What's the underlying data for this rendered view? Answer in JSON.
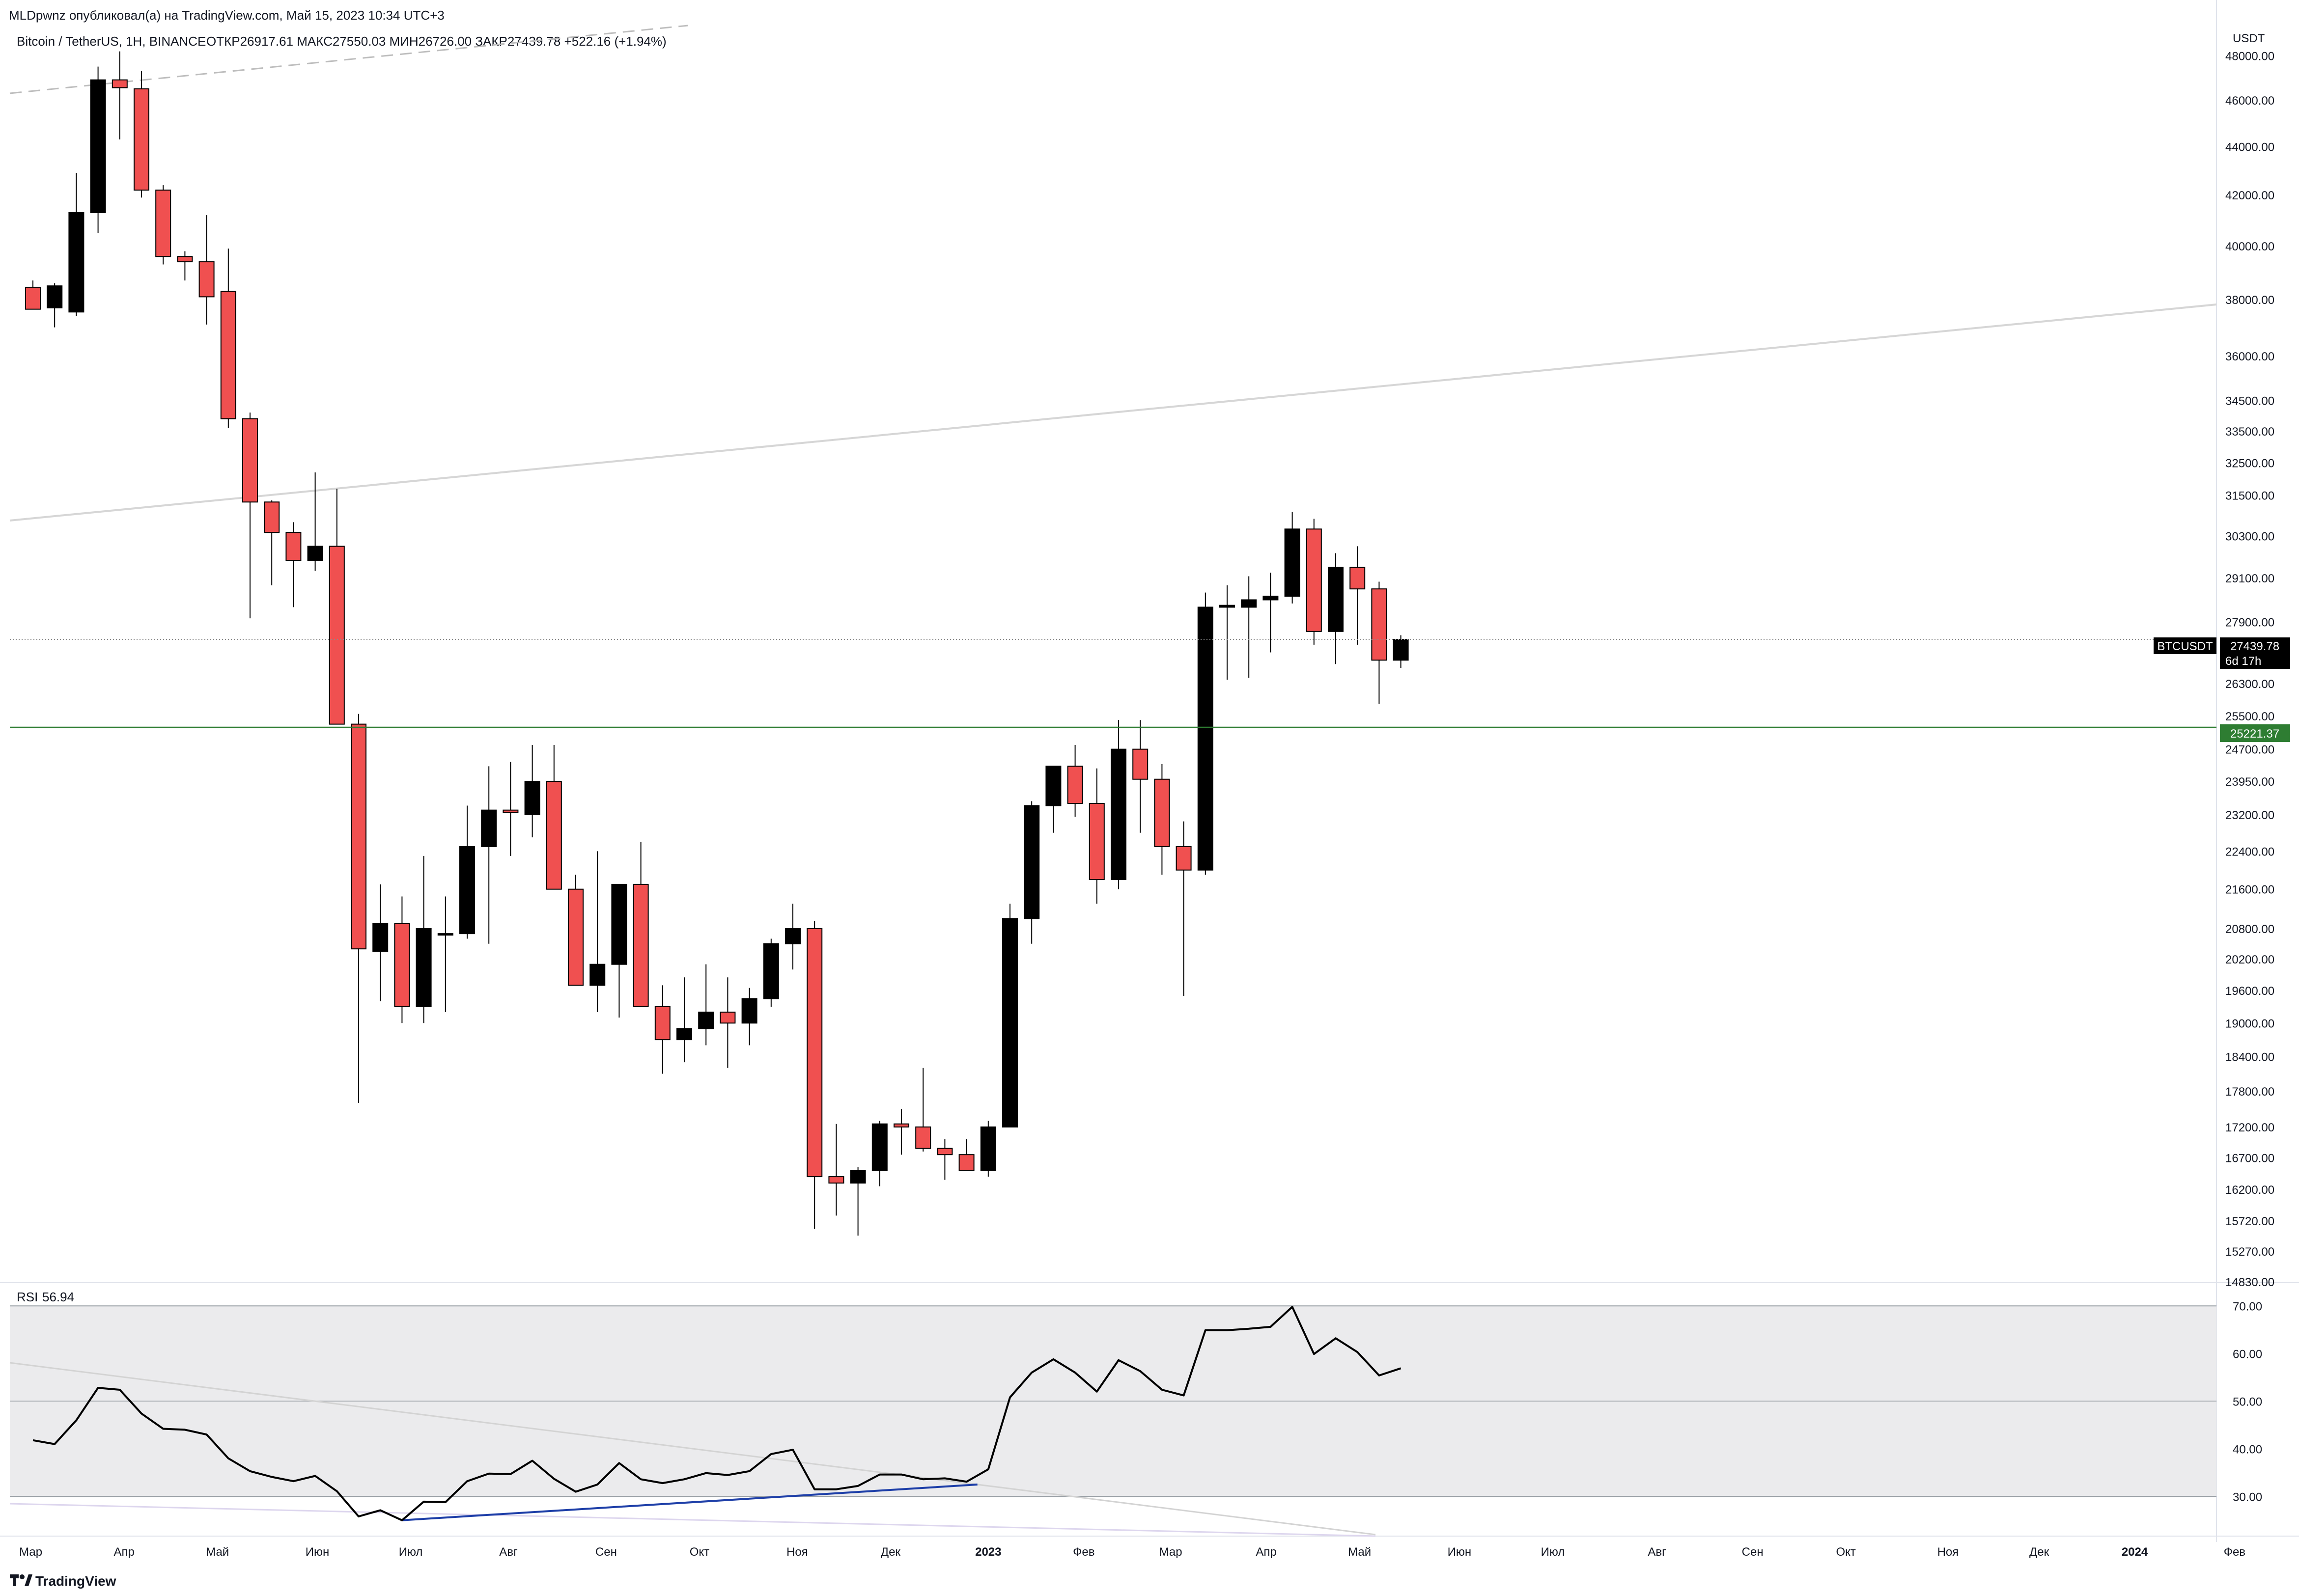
{
  "header": {
    "attribution": "MLDpwnz опубликовал(а) на TradingView.com, Май 15, 2023 10:34 UTC+3",
    "symbol": "Bitcoin / TetherUS, 1Н, BINANCE",
    "ohlc": "ОТКР26917.61  МАКС27550.03  МИН26726.00  ЗАКР27439.78  +522.16 (+1.94%)",
    "currency": "USDT"
  },
  "logo": {
    "text": "TradingView",
    "icon": "tradingview-logo-icon"
  },
  "price_tag": {
    "symbol": "BTCUSDT",
    "price": "27439.78",
    "countdown": "6d 17h",
    "color": "#000000"
  },
  "level_tag": {
    "price": "25221.37",
    "color": "#2e7d32"
  },
  "rsi": {
    "label": "RSI",
    "value": "56.94"
  },
  "colors": {
    "up": "#000000",
    "down": "#f05050",
    "support": "#2e7d32",
    "trend_upper": "#d6d6d6",
    "rsi_divergence": "#1e3fa8",
    "rsi_band": "#ebebed"
  },
  "chart_data": [
    {
      "type": "candlestick",
      "scale": "log",
      "ylim": [
        14830,
        49500
      ],
      "yticks": [
        "48000.00",
        "46000.00",
        "44000.00",
        "42000.00",
        "40000.00",
        "38000.00",
        "36000.00",
        "34500.00",
        "33500.00",
        "32500.00",
        "31500.00",
        "30300.00",
        "29100.00",
        "27900.00",
        "26300.00",
        "25500.00",
        "24700.00",
        "23950.00",
        "23200.00",
        "22400.00",
        "21600.00",
        "20800.00",
        "20200.00",
        "19600.00",
        "19000.00",
        "18400.00",
        "17800.00",
        "17200.00",
        "16700.00",
        "16200.00",
        "15720.00",
        "15270.00",
        "14830.00"
      ],
      "xticks": [
        {
          "label": "Мар",
          "i": -0.1
        },
        {
          "label": "Апр",
          "i": 4.2
        },
        {
          "label": "Май",
          "i": 8.5
        },
        {
          "label": "Июн",
          "i": 13.1
        },
        {
          "label": "Июл",
          "i": 17.4
        },
        {
          "label": "Авг",
          "i": 21.9
        },
        {
          "label": "Сен",
          "i": 26.4
        },
        {
          "label": "Окт",
          "i": 30.7
        },
        {
          "label": "Ноя",
          "i": 35.2
        },
        {
          "label": "Дек",
          "i": 39.5
        },
        {
          "label": "2023",
          "i": 44.0,
          "bold": true
        },
        {
          "label": "Фев",
          "i": 48.4
        },
        {
          "label": "Мар",
          "i": 52.4
        },
        {
          "label": "Апр",
          "i": 56.8
        },
        {
          "label": "Май",
          "i": 61.1
        },
        {
          "label": "Июн",
          "i": 65.7
        },
        {
          "label": "Июл",
          "i": 70.0
        },
        {
          "label": "Авг",
          "i": 74.8
        },
        {
          "label": "Сен",
          "i": 79.2
        },
        {
          "label": "Окт",
          "i": 83.5
        },
        {
          "label": "Ноя",
          "i": 88.2
        },
        {
          "label": "Дек",
          "i": 92.4
        },
        {
          "label": "2024",
          "i": 96.8,
          "bold": true
        },
        {
          "label": "Фев",
          "i": 101.4
        }
      ],
      "candles": [
        [
          38450,
          38700,
          37700,
          37650
        ],
        [
          37700,
          38600,
          37000,
          38500
        ],
        [
          37550,
          42900,
          37400,
          41300
        ],
        [
          41300,
          47500,
          40500,
          46900
        ],
        [
          46900,
          48200,
          44300,
          46550
        ],
        [
          46500,
          47300,
          41900,
          42200
        ],
        [
          42200,
          42400,
          39300,
          39600
        ],
        [
          39600,
          39800,
          38700,
          39400
        ],
        [
          39400,
          41200,
          37100,
          38100
        ],
        [
          38300,
          39900,
          33600,
          33900
        ],
        [
          33900,
          34100,
          28000,
          31300
        ],
        [
          31300,
          31350,
          28900,
          30400
        ],
        [
          30400,
          30700,
          28300,
          29600
        ],
        [
          29600,
          32200,
          29300,
          30000
        ],
        [
          30000,
          31700,
          25300,
          25300
        ],
        [
          25300,
          25550,
          17600,
          20400
        ],
        [
          20350,
          21700,
          19400,
          20900
        ],
        [
          20900,
          21450,
          19000,
          19300
        ],
        [
          19300,
          22300,
          19000,
          20800
        ],
        [
          20700,
          21450,
          19200,
          20700
        ],
        [
          20700,
          23400,
          20600,
          22500
        ],
        [
          22500,
          24300,
          20500,
          23300
        ],
        [
          23300,
          24400,
          22300,
          23250
        ],
        [
          23200,
          24800,
          22700,
          23950
        ],
        [
          23950,
          24800,
          21600,
          21600
        ],
        [
          21600,
          21900,
          19700,
          19700
        ],
        [
          19700,
          22400,
          19200,
          20100
        ],
        [
          20100,
          21700,
          19100,
          21700
        ],
        [
          21700,
          22600,
          19300,
          19300
        ],
        [
          19300,
          19700,
          18100,
          18700
        ],
        [
          18700,
          19850,
          18300,
          18900
        ],
        [
          18900,
          20100,
          18600,
          19200
        ],
        [
          19200,
          19850,
          18200,
          19000
        ],
        [
          19000,
          19650,
          18600,
          19450
        ],
        [
          19450,
          20600,
          19300,
          20500
        ],
        [
          20500,
          21300,
          20000,
          20800
        ],
        [
          20800,
          20950,
          15600,
          16400
        ],
        [
          16400,
          17250,
          15800,
          16300
        ],
        [
          16300,
          16550,
          15500,
          16500
        ],
        [
          16500,
          17300,
          16250,
          17250
        ],
        [
          17250,
          17500,
          16750,
          17200
        ],
        [
          17200,
          18200,
          16800,
          16850
        ],
        [
          16850,
          17000,
          16350,
          16750
        ],
        [
          16750,
          17000,
          16500,
          16500
        ],
        [
          16500,
          17300,
          16400,
          17200
        ],
        [
          17200,
          21300,
          17200,
          21000
        ],
        [
          21000,
          23500,
          20500,
          23400
        ],
        [
          23400,
          24300,
          22800,
          24300
        ],
        [
          24300,
          24800,
          23150,
          23450
        ],
        [
          23450,
          24250,
          21300,
          21800
        ],
        [
          21800,
          25400,
          21600,
          24700
        ],
        [
          24700,
          25400,
          22800,
          24000
        ],
        [
          24000,
          24350,
          21900,
          22500
        ],
        [
          22500,
          23050,
          19500,
          22000
        ],
        [
          22000,
          28700,
          21900,
          28300
        ],
        [
          28300,
          28900,
          26400,
          28350
        ],
        [
          28300,
          29150,
          26450,
          28500
        ],
        [
          28500,
          29250,
          27100,
          28600
        ],
        [
          28600,
          31000,
          28400,
          30500
        ],
        [
          30500,
          30800,
          27300,
          27650
        ],
        [
          27650,
          29800,
          26800,
          29400
        ],
        [
          29400,
          30000,
          27300,
          28800
        ],
        [
          28800,
          29000,
          25800,
          26900
        ],
        [
          26900,
          27550,
          26700,
          27439.78
        ]
      ],
      "support_level": 25221.37,
      "last_price": 27439.78
    },
    {
      "type": "line",
      "name": "RSI",
      "ylim": [
        22.5,
        72.5
      ],
      "yticks": [
        "70.00",
        "60.00",
        "50.00",
        "40.00",
        "30.00"
      ],
      "bands": [
        30,
        50,
        70
      ],
      "values": [
        41.8,
        41.0,
        46.0,
        52.8,
        52.4,
        47.4,
        44.2,
        44.0,
        43.0,
        38.0,
        35.3,
        34.1,
        33.2,
        34.3,
        31.1,
        25.8,
        27.1,
        25.0,
        28.9,
        28.8,
        33.2,
        34.8,
        34.7,
        37.5,
        33.7,
        31.0,
        32.5,
        37.0,
        33.6,
        32.8,
        33.6,
        34.9,
        34.5,
        35.3,
        38.9,
        39.8,
        31.5,
        31.5,
        32.2,
        34.6,
        34.6,
        33.6,
        33.8,
        33.1,
        35.7,
        50.8,
        56.0,
        58.8,
        56.0,
        52.0,
        58.6,
        56.3,
        52.4,
        51.2,
        64.9,
        64.9,
        65.2,
        65.6,
        69.8,
        59.9,
        63.2,
        60.3,
        55.4,
        56.9
      ]
    }
  ]
}
